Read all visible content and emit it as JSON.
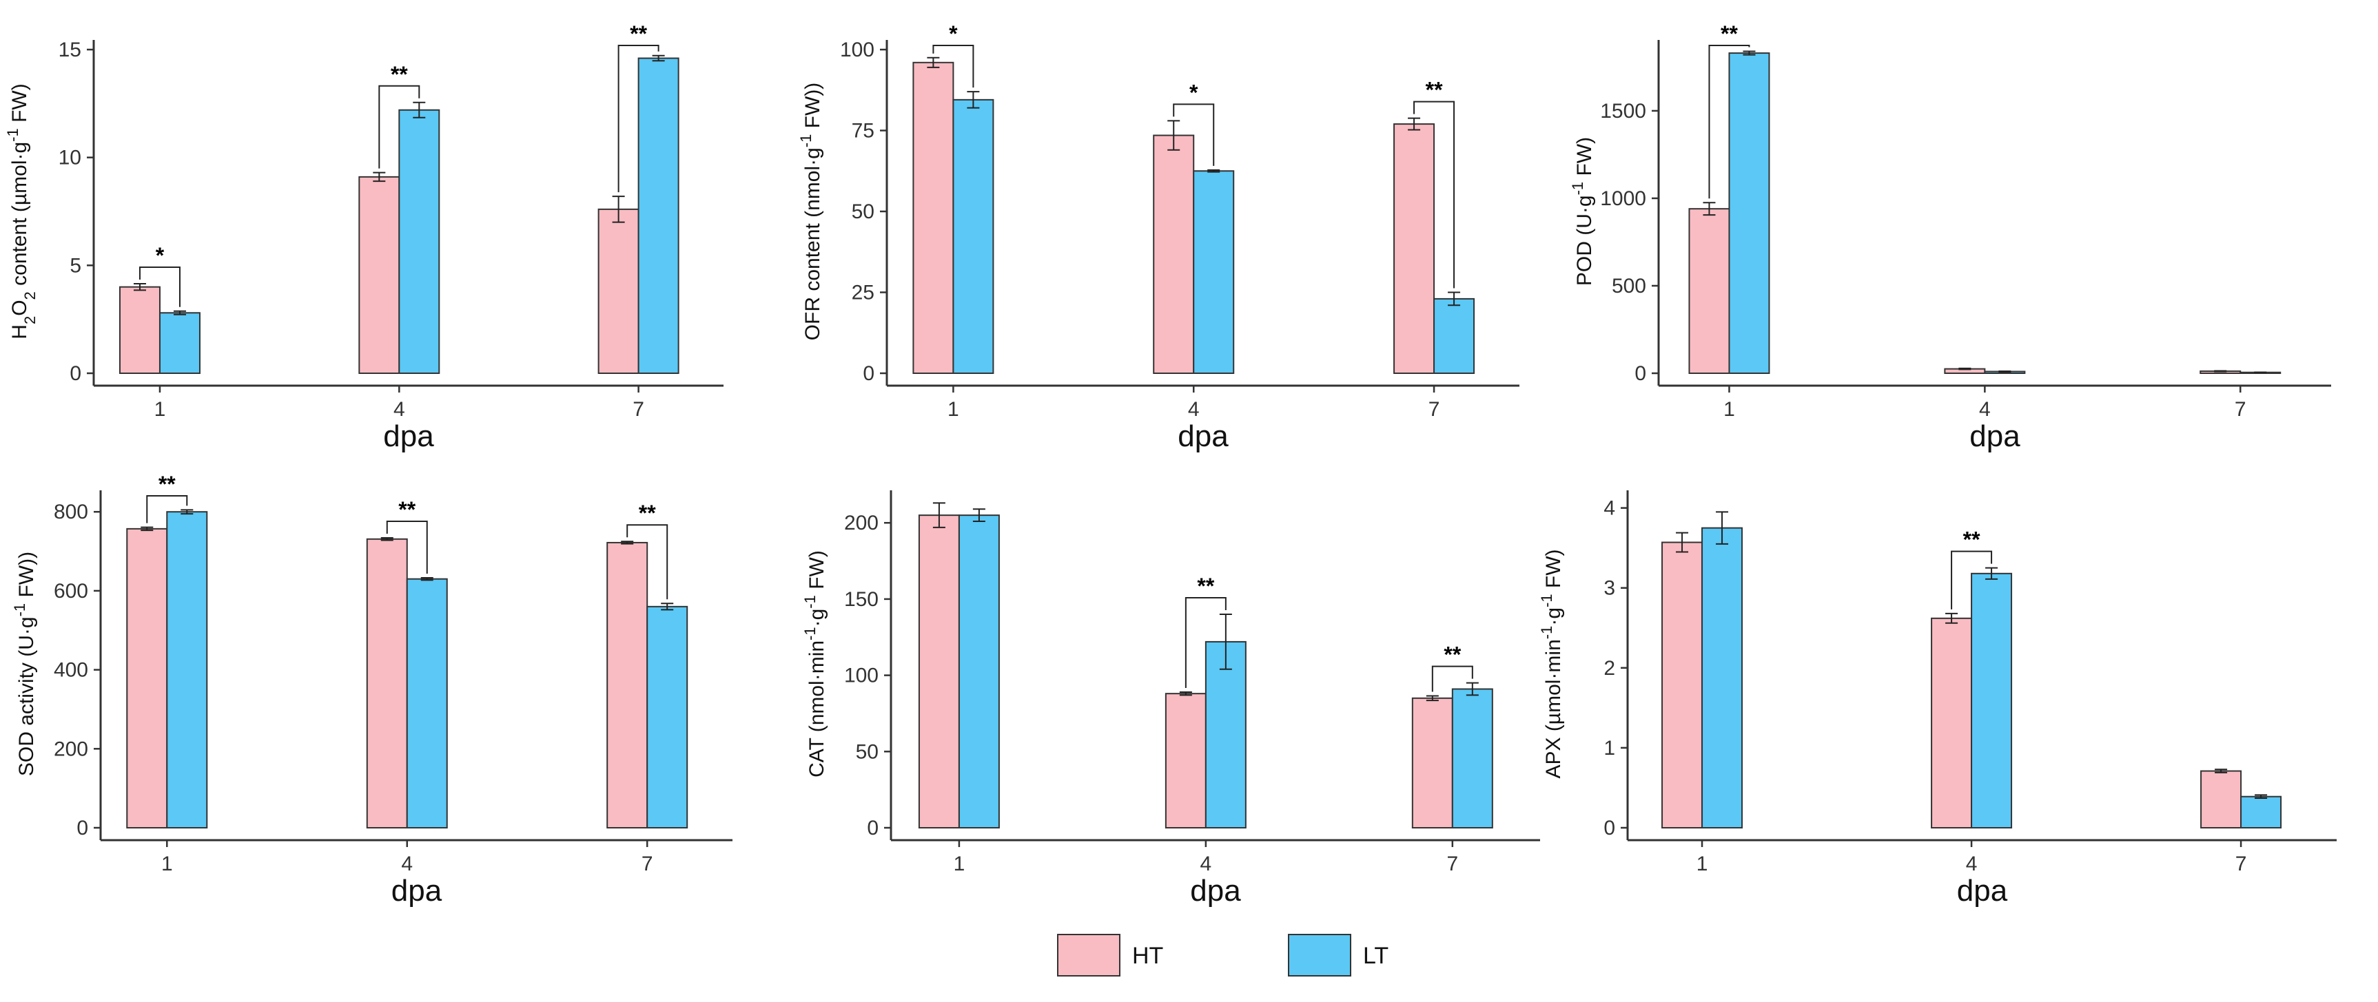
{
  "chart_data": [
    {
      "id": "h2o2",
      "type": "bar",
      "ylabel_parts": [
        "H",
        "2",
        "O",
        "2",
        " content (µmol·g",
        "-1",
        " FW)"
      ],
      "xlabel": "dpa",
      "categories": [
        "1",
        "4",
        "7"
      ],
      "ylim": [
        0,
        15
      ],
      "yticks": [
        0,
        5,
        10,
        15
      ],
      "series": [
        {
          "name": "HT",
          "values": [
            4.0,
            9.1,
            7.6
          ],
          "errors": [
            0.15,
            0.2,
            0.6
          ]
        },
        {
          "name": "LT",
          "values": [
            2.8,
            12.2,
            14.6
          ],
          "errors": [
            0.08,
            0.35,
            0.12
          ]
        }
      ],
      "significance": [
        "*",
        "**",
        "**"
      ]
    },
    {
      "id": "ofr",
      "type": "bar",
      "ylabel_parts": [
        "OFR content (nmol·g",
        "-1",
        " FW))"
      ],
      "xlabel": "dpa",
      "categories": [
        "1",
        "4",
        "7"
      ],
      "ylim": [
        0,
        100
      ],
      "yticks": [
        0,
        25,
        50,
        75,
        100
      ],
      "series": [
        {
          "name": "HT",
          "values": [
            96,
            73.5,
            77
          ],
          "errors": [
            1.5,
            4.5,
            1.8
          ]
        },
        {
          "name": "LT",
          "values": [
            84.5,
            62.5,
            23
          ],
          "errors": [
            2.5,
            0.3,
            2.0
          ]
        }
      ],
      "significance": [
        "*",
        "*",
        "**"
      ]
    },
    {
      "id": "pod",
      "type": "bar",
      "ylabel_parts": [
        "POD (U·g",
        "-1",
        " FW)"
      ],
      "xlabel": "dpa",
      "categories": [
        "1",
        "4",
        "7"
      ],
      "ylim": [
        0,
        1850
      ],
      "yticks": [
        0,
        500,
        1000,
        1500
      ],
      "series": [
        {
          "name": "HT",
          "values": [
            940,
            25,
            12
          ],
          "errors": [
            35,
            3,
            2
          ]
        },
        {
          "name": "LT",
          "values": [
            1830,
            10,
            5
          ],
          "errors": [
            10,
            2,
            1
          ]
        }
      ],
      "significance": [
        "**",
        "",
        ""
      ]
    },
    {
      "id": "sod",
      "type": "bar",
      "ylabel_parts": [
        "SOD activity (U·g",
        "-1",
        " FW))"
      ],
      "xlabel": "dpa",
      "categories": [
        "1",
        "4",
        "7"
      ],
      "ylim": [
        0,
        830
      ],
      "yticks": [
        0,
        200,
        400,
        600,
        800
      ],
      "series": [
        {
          "name": "HT",
          "values": [
            757,
            731,
            722
          ],
          "errors": [
            4,
            3,
            3
          ]
        },
        {
          "name": "LT",
          "values": [
            800,
            630,
            560
          ],
          "errors": [
            5,
            3,
            8
          ]
        }
      ],
      "significance": [
        "**",
        "**",
        "**"
      ]
    },
    {
      "id": "cat",
      "type": "bar",
      "ylabel_parts": [
        "CAT (nmol·min",
        "-1",
        "·g",
        "-1",
        " FW)"
      ],
      "xlabel": "dpa",
      "categories": [
        "1",
        "4",
        "7"
      ],
      "ylim": [
        0,
        215
      ],
      "yticks": [
        0,
        50,
        100,
        150,
        200
      ],
      "series": [
        {
          "name": "HT",
          "values": [
            205,
            88,
            85
          ],
          "errors": [
            8,
            1,
            1.5
          ]
        },
        {
          "name": "LT",
          "values": [
            205,
            122,
            91
          ],
          "errors": [
            4,
            18,
            4
          ]
        }
      ],
      "significance": [
        "",
        "**",
        "**"
      ]
    },
    {
      "id": "apx",
      "type": "bar",
      "ylabel_parts": [
        "APX (µmol·min",
        "-1",
        "·g",
        "-1",
        " FW)"
      ],
      "xlabel": "dpa",
      "categories": [
        "1",
        "4",
        "7"
      ],
      "ylim": [
        0,
        4.1
      ],
      "yticks": [
        0,
        1,
        2,
        3,
        4
      ],
      "series": [
        {
          "name": "HT",
          "values": [
            3.57,
            2.62,
            0.71
          ],
          "errors": [
            0.12,
            0.06,
            0.02
          ]
        },
        {
          "name": "LT",
          "values": [
            3.75,
            3.18,
            0.39
          ],
          "errors": [
            0.2,
            0.07,
            0.02
          ]
        }
      ],
      "significance": [
        "",
        "**",
        ""
      ]
    }
  ],
  "legend": {
    "items": [
      {
        "label": "HT",
        "color": "#F9BCC3"
      },
      {
        "label": "LT",
        "color": "#5BC8F5"
      }
    ]
  },
  "colors": {
    "HT": "#F9BCC3",
    "LT": "#5BC8F5",
    "axis": "#333333",
    "bar_stroke": "#333333"
  }
}
